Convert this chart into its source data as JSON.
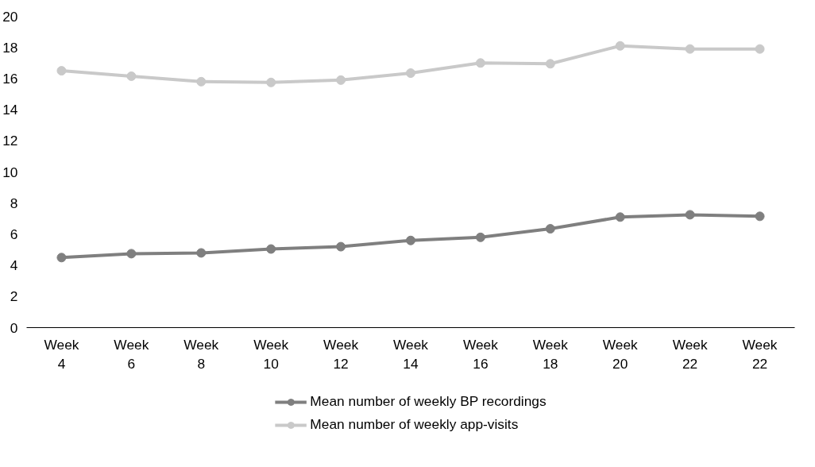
{
  "chart_data": {
    "type": "line",
    "categories": [
      "Week 4",
      "Week 6",
      "Week 8",
      "Week 10",
      "Week 12",
      "Week 14",
      "Week 16",
      "Week 18",
      "Week 20",
      "Week 22",
      "Week 22"
    ],
    "series": [
      {
        "name": "Mean number of weekly BP recordings",
        "color": "#7f7f7f",
        "values": [
          4.5,
          4.75,
          4.8,
          5.05,
          5.2,
          5.6,
          5.8,
          6.35,
          7.1,
          7.25,
          7.15
        ]
      },
      {
        "name": "Mean number of weekly app-visits",
        "color": "#c9c9c9",
        "values": [
          16.5,
          16.15,
          15.8,
          15.75,
          15.9,
          16.35,
          17.0,
          16.95,
          18.1,
          17.9,
          17.9
        ]
      }
    ],
    "ylim": [
      0,
      20
    ],
    "yticks": [
      0,
      2,
      4,
      6,
      8,
      10,
      12,
      14,
      16,
      18,
      20
    ],
    "grid": false,
    "legend": "bottom",
    "marker": "circle",
    "line_style": "solid"
  }
}
